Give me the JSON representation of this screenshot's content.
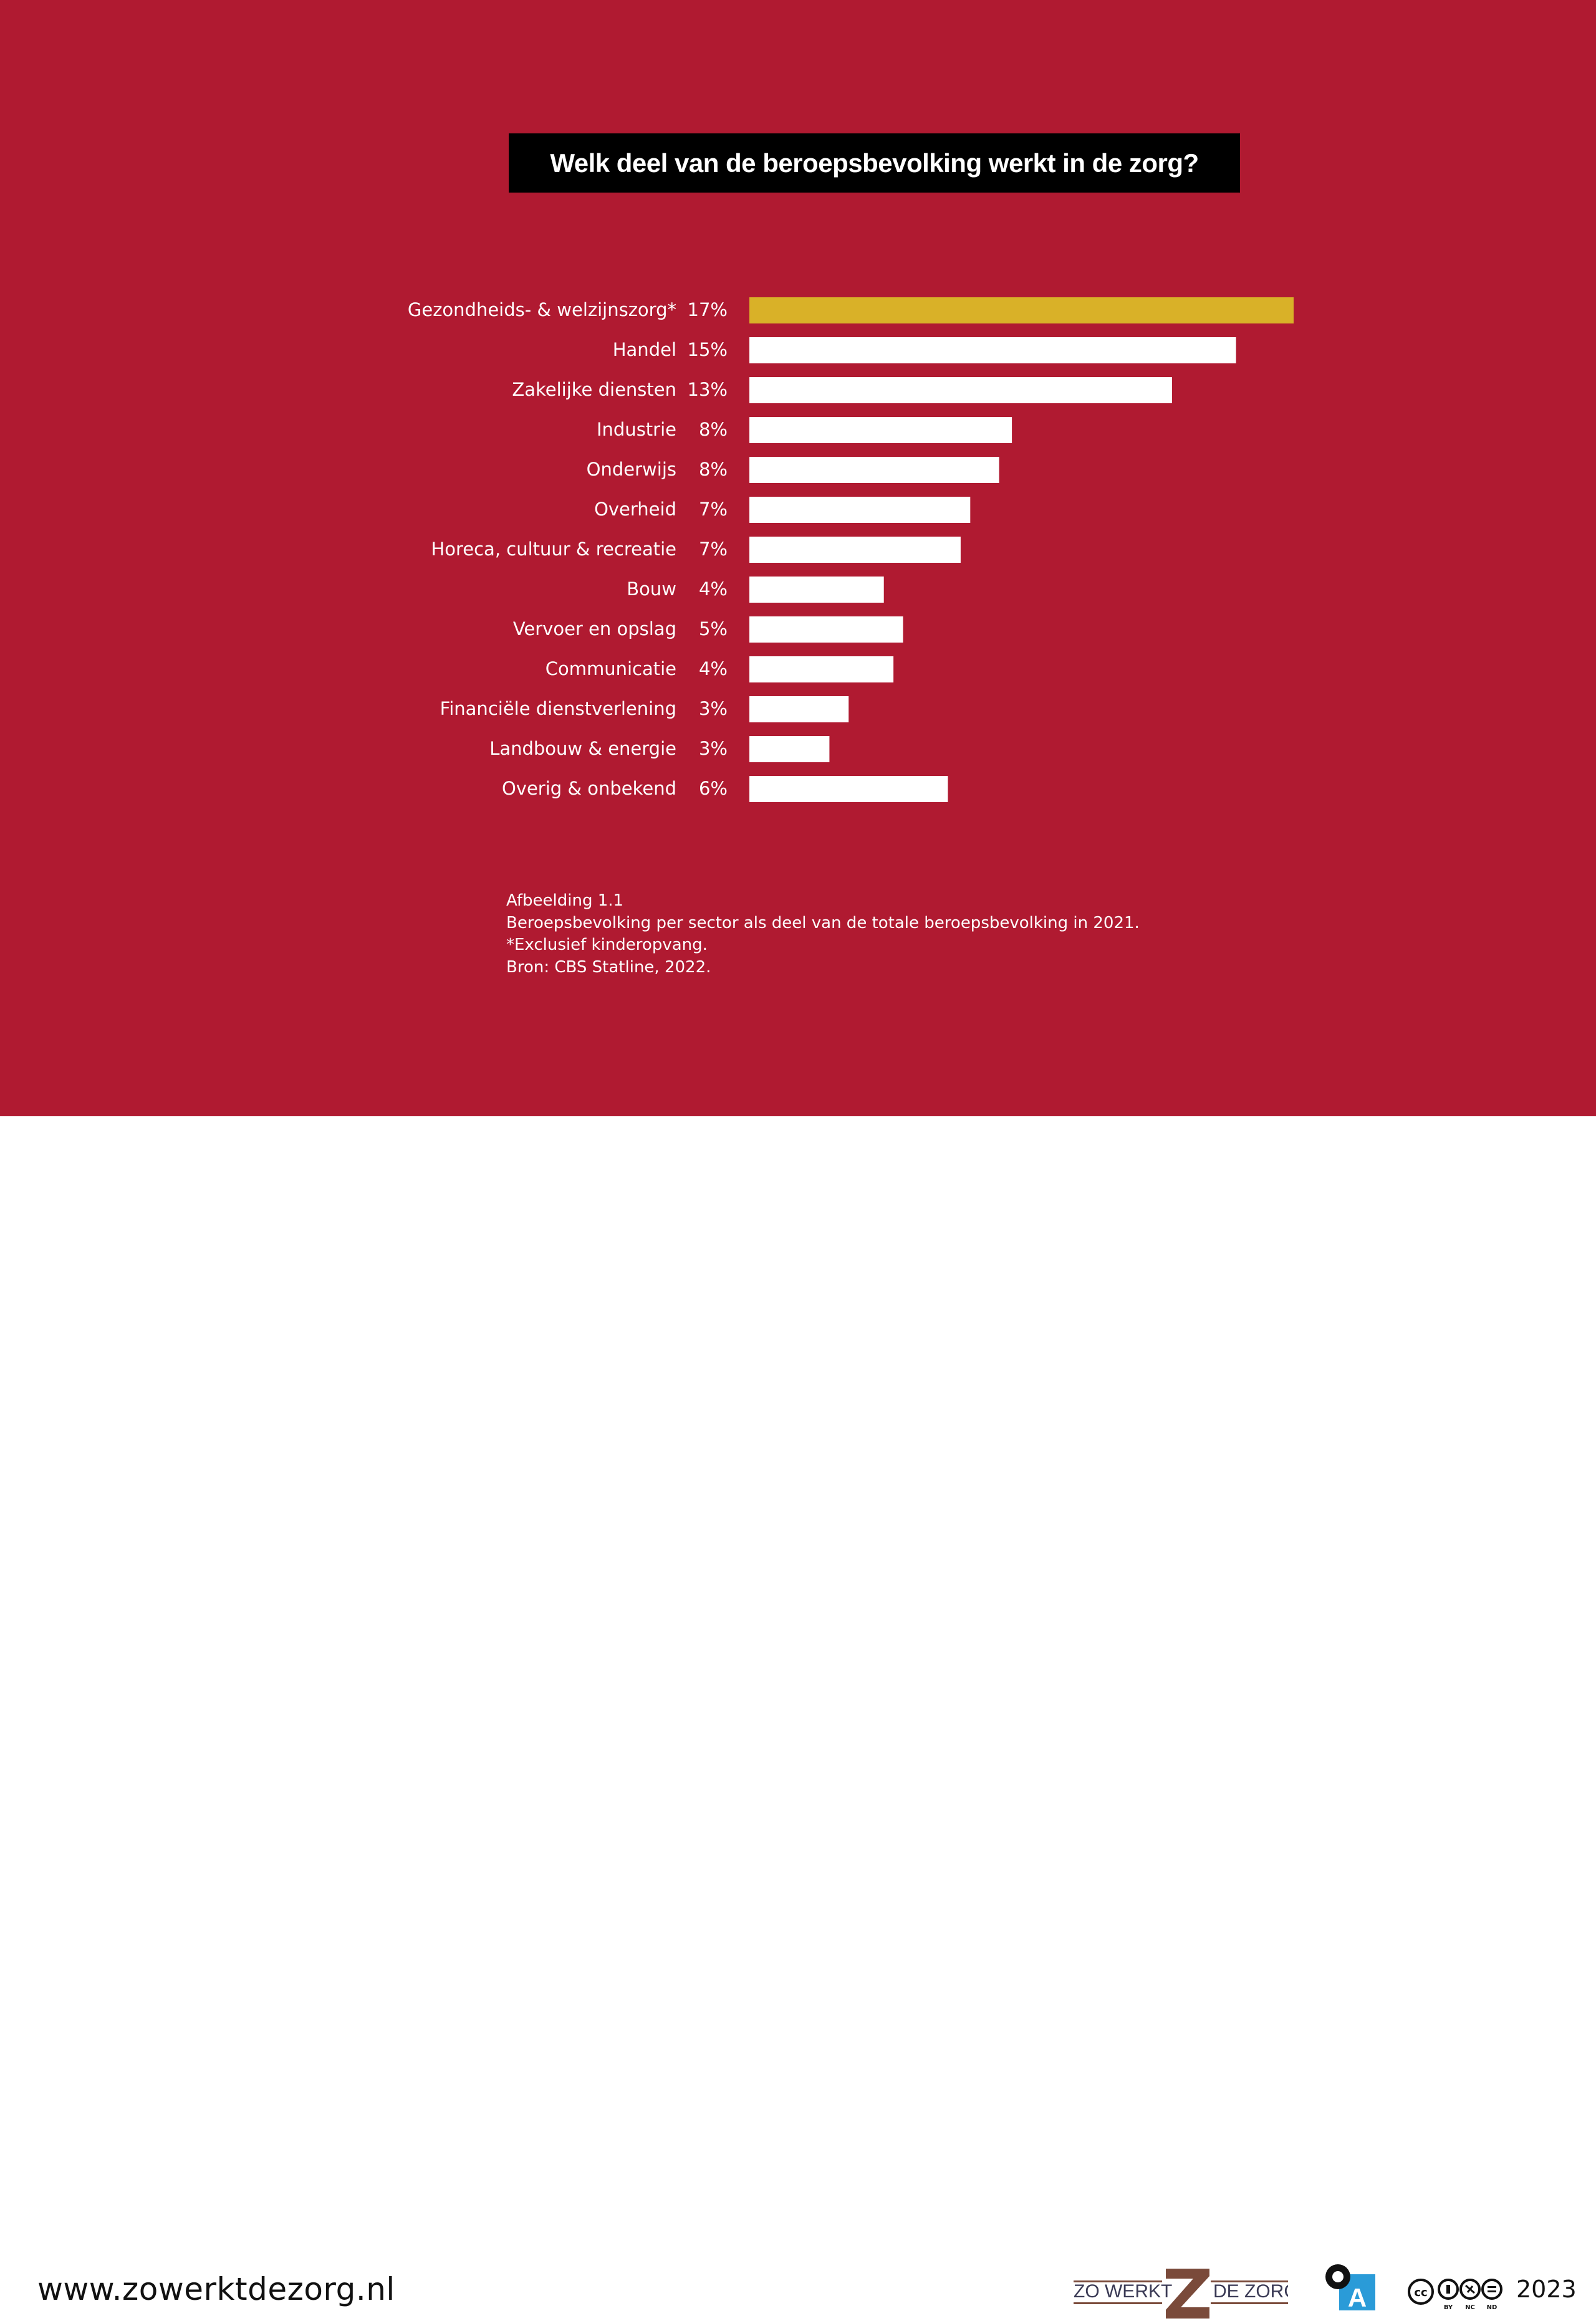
{
  "colors": {
    "background": "#B01A31",
    "highlight": "#D9B128",
    "bar": "#FFFFFF",
    "title_bg": "#000000"
  },
  "chart_data": {
    "type": "bar",
    "orientation": "horizontal",
    "title": "Welk deel van de beroepsbevolking werkt in de zorg?",
    "categories": [
      "Gezondheids- & welzijnszorg*",
      "Handel",
      "Zakelijke diensten",
      "Industrie",
      "Onderwijs",
      "Overheid",
      "Horeca, cultuur & recreatie",
      "Bouw",
      "Vervoer en opslag",
      "Communicatie",
      "Financiële dienstverlening",
      "Landbouw & energie",
      "Overig & onbekend"
    ],
    "value_labels": [
      "17%",
      "15%",
      "13%",
      "8%",
      "8%",
      "7%",
      "7%",
      "4%",
      "5%",
      "4%",
      "3%",
      "3%",
      "6%"
    ],
    "values": [
      17.0,
      15.2,
      13.2,
      8.2,
      7.8,
      6.9,
      6.6,
      4.2,
      4.8,
      4.5,
      3.1,
      2.5,
      6.2
    ],
    "unit": "%",
    "highlight_category": "Gezondheids- & welzijnszorg*",
    "xlim": [
      0,
      17
    ],
    "grid": false,
    "legend": "none"
  },
  "caption": [
    "Afbeelding 1.1",
    "Beroepsbevolking per sector als deel van de totale beroepsbevolking in 2021.",
    "*Exclusief kinderopvang.",
    "Bron: CBS Statline, 2022."
  ],
  "footer": {
    "url": "www.zowerktdezorg.nl",
    "logo_left": "ZO WERKT",
    "logo_right": "DE ZORG",
    "oa_letter": "A",
    "cc_main": "cc",
    "cc_labels": [
      "BY",
      "NC",
      "ND"
    ],
    "year": "2023",
    "icons": [
      "zo-werkt-de-zorg-logo",
      "open-access-icon",
      "creative-commons-icon"
    ]
  }
}
